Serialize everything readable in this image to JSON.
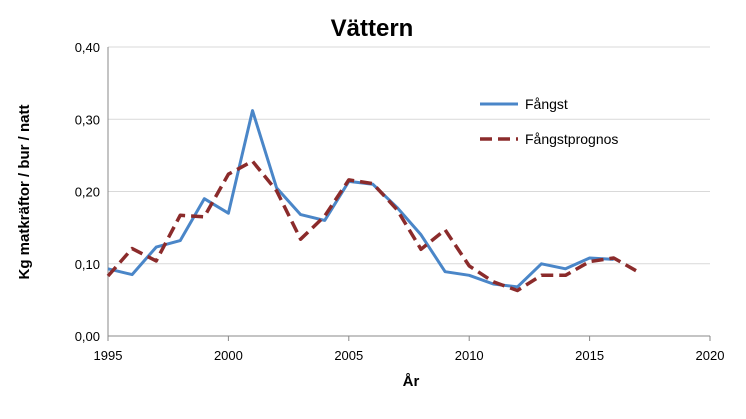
{
  "chart_data": {
    "type": "line",
    "title": "Vättern",
    "xlabel": "År",
    "ylabel": "Kg matkräftor / bur / natt",
    "xlim": [
      1995,
      2020
    ],
    "ylim": [
      0,
      0.4
    ],
    "xticks": [
      1995,
      2000,
      2005,
      2010,
      2015,
      2020
    ],
    "xtick_labels": [
      "1995",
      "2000",
      "2005",
      "2010",
      "2015",
      "2020"
    ],
    "yticks": [
      0,
      0.1,
      0.2,
      0.3,
      0.4
    ],
    "ytick_labels": [
      "0,00",
      "0,10",
      "0,20",
      "0,30",
      "0,40"
    ],
    "grid": "horizontal",
    "legend_position": "top-right",
    "series": [
      {
        "name": "Fångst",
        "color": "#4A86C8",
        "style": "solid",
        "x": [
          1995,
          1996,
          1997,
          1998,
          1999,
          2000,
          2001,
          2002,
          2003,
          2004,
          2005,
          2006,
          2007,
          2008,
          2009,
          2010,
          2011,
          2012,
          2013,
          2014,
          2015,
          2016
        ],
        "y": [
          0.093,
          0.085,
          0.123,
          0.132,
          0.19,
          0.17,
          0.312,
          0.205,
          0.168,
          0.16,
          0.214,
          0.21,
          0.178,
          0.14,
          0.089,
          0.084,
          0.072,
          0.068,
          0.1,
          0.093,
          0.108,
          0.106
        ]
      },
      {
        "name": "Fångstprognos",
        "color": "#8B2B2B",
        "style": "dashed",
        "x": [
          1995,
          1996,
          1997,
          1998,
          1999,
          2000,
          2001,
          2002,
          2003,
          2004,
          2005,
          2006,
          2007,
          2008,
          2009,
          2010,
          2011,
          2012,
          2013,
          2014,
          2015,
          2016,
          2017
        ],
        "y": [
          0.083,
          0.121,
          0.104,
          0.167,
          0.165,
          0.224,
          0.242,
          0.201,
          0.134,
          0.166,
          0.216,
          0.211,
          0.175,
          0.12,
          0.147,
          0.097,
          0.075,
          0.063,
          0.084,
          0.084,
          0.103,
          0.108,
          0.089
        ]
      }
    ]
  }
}
